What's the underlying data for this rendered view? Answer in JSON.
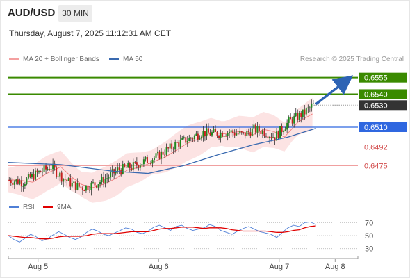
{
  "header": {
    "symbol": "AUD/USD",
    "timeframe": "30 MIN",
    "datetime": "Thursday, August 7, 2025 11:12:31 AM CET"
  },
  "legend": {
    "bb_label": "MA 20 + Bollinger Bands",
    "bb_color": "#f4a0a0",
    "ma50_label": "MA 50",
    "ma50_color": "#3a6ab0"
  },
  "credit": "Research © 2025 Trading Central",
  "indicator_legend": {
    "rsi_label": "RSI",
    "rsi_color": "#4f7fd6",
    "ma9_label": "9MA",
    "ma9_color": "#e00000"
  },
  "chart_data": [
    {
      "type": "candlestick",
      "symbol": "AUD/USD",
      "timeframe": "30 MIN",
      "ylim": [
        0.6445,
        0.6563
      ],
      "x_ticks": [
        "Aug 5",
        "Aug 6",
        "Aug 7",
        "Aug 8"
      ],
      "levels": [
        {
          "value": 0.6555,
          "label": "0.6555",
          "color": "#3a8a00",
          "style": "resistance"
        },
        {
          "value": 0.654,
          "label": "0.6540",
          "color": "#3a8a00",
          "style": "resistance"
        },
        {
          "value": 0.653,
          "label": "0.6530",
          "color": "#333333",
          "style": "last-price"
        },
        {
          "value": 0.651,
          "label": "0.6510",
          "color": "#2f67e0",
          "style": "pivot"
        },
        {
          "value": 0.6492,
          "label": "0.6492",
          "color": "#e07070",
          "style": "support"
        },
        {
          "value": 0.6475,
          "label": "0.6475",
          "color": "#e07070",
          "style": "support"
        }
      ],
      "price_path": [
        [
          0,
          0.6462
        ],
        [
          8,
          0.646
        ],
        [
          16,
          0.6468
        ],
        [
          24,
          0.6474
        ],
        [
          30,
          0.6465
        ],
        [
          36,
          0.6458
        ],
        [
          42,
          0.6455
        ],
        [
          50,
          0.6459
        ],
        [
          56,
          0.6464
        ],
        [
          62,
          0.6471
        ],
        [
          70,
          0.6474
        ],
        [
          76,
          0.6478
        ],
        [
          84,
          0.6483
        ],
        [
          90,
          0.6489
        ],
        [
          96,
          0.6495
        ],
        [
          104,
          0.65
        ],
        [
          110,
          0.6505
        ],
        [
          118,
          0.6504
        ],
        [
          126,
          0.6506
        ],
        [
          134,
          0.6503
        ],
        [
          140,
          0.6508
        ],
        [
          146,
          0.6506
        ],
        [
          152,
          0.6501
        ],
        [
          160,
          0.6515
        ],
        [
          168,
          0.6522
        ],
        [
          174,
          0.653
        ]
      ],
      "ma50_path": [
        [
          0,
          0.6478
        ],
        [
          30,
          0.6476
        ],
        [
          60,
          0.647
        ],
        [
          80,
          0.6468
        ],
        [
          100,
          0.6475
        ],
        [
          120,
          0.6485
        ],
        [
          140,
          0.6494
        ],
        [
          160,
          0.6501
        ],
        [
          176,
          0.6509
        ]
      ],
      "arrow": {
        "from": [
          176,
          0.6531
        ],
        "to": [
          194,
          0.6555
        ],
        "color": "#2d63b4"
      }
    },
    {
      "type": "line",
      "name": "RSI",
      "ylim": [
        20,
        80
      ],
      "y_ticks": [
        70,
        50,
        30
      ],
      "series": [
        {
          "name": "RSI",
          "color": "#4f7fd6",
          "values": [
            50,
            44,
            40,
            46,
            52,
            48,
            42,
            45,
            51,
            56,
            52,
            47,
            44,
            48,
            55,
            60,
            57,
            52,
            50,
            54,
            58,
            62,
            60,
            55,
            53,
            57,
            63,
            66,
            62,
            58,
            64,
            66,
            61,
            58,
            60,
            62,
            67,
            64,
            58,
            55,
            52,
            57,
            61,
            64,
            60,
            56,
            54,
            52,
            47,
            55,
            62,
            66,
            64,
            70,
            71,
            67
          ]
        },
        {
          "name": "9MA",
          "color": "#e00000",
          "values": [
            50,
            49,
            48,
            47,
            47,
            46,
            45,
            45,
            46,
            48,
            49,
            49,
            49,
            49,
            50,
            52,
            53,
            53,
            53,
            53,
            54,
            55,
            56,
            56,
            56,
            56,
            58,
            60,
            61,
            61,
            62,
            63,
            63,
            63,
            62,
            61,
            62,
            62,
            62,
            61,
            59,
            58,
            57,
            57,
            57,
            57,
            57,
            56,
            55,
            55,
            56,
            58,
            59,
            62,
            64,
            65
          ]
        }
      ]
    }
  ]
}
